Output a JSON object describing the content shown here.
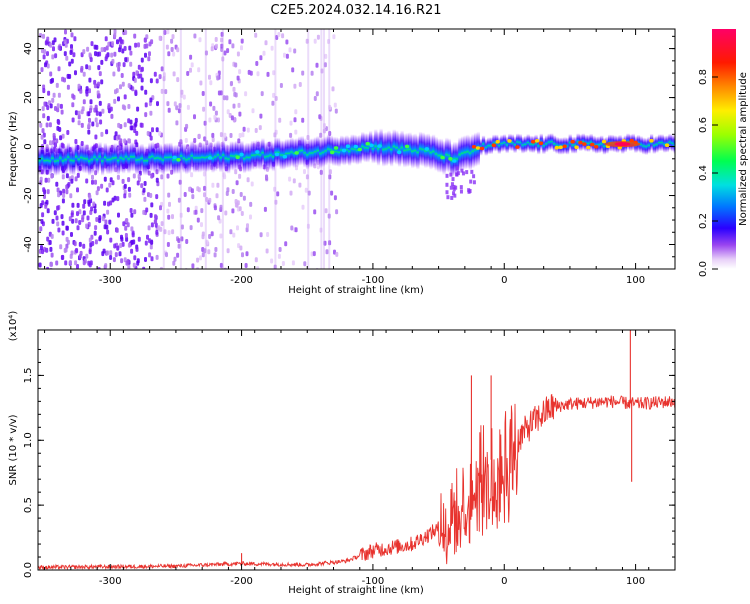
{
  "title": "C2E5.2024.032.14.16.R21",
  "chart_data": [
    {
      "type": "heatmap",
      "xlabel": "Height of straight line (km)",
      "ylabel": "Frequency (Hz)",
      "xlim": [
        -355,
        130
      ],
      "ylim": [
        -50,
        48
      ],
      "xticks": [
        -300,
        -200,
        -100,
        0,
        100
      ],
      "xtick_labels": [
        "-300",
        "-200",
        "-100",
        "0",
        "100"
      ],
      "yticks": [
        -40,
        -20,
        0,
        20,
        40
      ],
      "ytick_labels": [
        "-40",
        "-20",
        "0",
        "20",
        "40"
      ],
      "colorbar": {
        "label": "Normalized spectral amplitude",
        "range": [
          0,
          1
        ],
        "ticks": [
          0.0,
          0.2,
          0.4,
          0.6,
          0.8
        ],
        "tick_labels": [
          "0.0",
          "0.2",
          "0.4",
          "0.6",
          "0.8"
        ]
      },
      "ridge": [
        {
          "x": -355,
          "y": -5
        },
        {
          "x": -300,
          "y": -5
        },
        {
          "x": -260,
          "y": -5
        },
        {
          "x": -200,
          "y": -4
        },
        {
          "x": -140,
          "y": -2
        },
        {
          "x": -100,
          "y": 0
        },
        {
          "x": -60,
          "y": -2
        },
        {
          "x": -40,
          "y": -5
        },
        {
          "x": -25,
          "y": -2
        },
        {
          "x": -20,
          "y": 0
        },
        {
          "x": 0,
          "y": 1
        },
        {
          "x": 50,
          "y": 1
        },
        {
          "x": 90,
          "y": 1
        },
        {
          "x": 130,
          "y": 1
        }
      ]
    },
    {
      "type": "line",
      "xlabel": "Height of straight line (km)",
      "ylabel": "SNR (10 * v/v)",
      "y_scale_label": "(x10⁴)",
      "xlim": [
        -355,
        130
      ],
      "ylim": [
        0,
        1.85
      ],
      "xticks": [
        -300,
        -200,
        -100,
        0,
        100
      ],
      "xtick_labels": [
        "-300",
        "-200",
        "-100",
        "0",
        "100"
      ],
      "yticks": [
        0,
        0.5,
        1.0,
        1.5
      ],
      "ytick_labels": [
        "0.0",
        "0.5",
        "1.0",
        "1.5"
      ],
      "color": "#e8332e",
      "series_envelope": [
        {
          "x": -355,
          "y": 0.02
        },
        {
          "x": -250,
          "y": 0.03
        },
        {
          "x": -200,
          "y": 0.05
        },
        {
          "x": -150,
          "y": 0.04
        },
        {
          "x": -120,
          "y": 0.07
        },
        {
          "x": -100,
          "y": 0.15
        },
        {
          "x": -70,
          "y": 0.2
        },
        {
          "x": -50,
          "y": 0.32
        },
        {
          "x": -40,
          "y": 0.4
        },
        {
          "x": -30,
          "y": 0.55
        },
        {
          "x": -20,
          "y": 0.75
        },
        {
          "x": -10,
          "y": 0.85
        },
        {
          "x": 0,
          "y": 0.9
        },
        {
          "x": 10,
          "y": 1.0
        },
        {
          "x": 20,
          "y": 1.12
        },
        {
          "x": 35,
          "y": 1.25
        },
        {
          "x": 50,
          "y": 1.28
        },
        {
          "x": 80,
          "y": 1.3
        },
        {
          "x": 100,
          "y": 1.28
        },
        {
          "x": 130,
          "y": 1.3
        }
      ],
      "spikes": [
        {
          "x": -200,
          "y": 0.13
        },
        {
          "x": -25,
          "y": 1.5
        },
        {
          "x": -10,
          "y": 1.5
        },
        {
          "x": 96,
          "y": 1.85
        },
        {
          "x": 97,
          "y": 0.68
        }
      ]
    }
  ]
}
